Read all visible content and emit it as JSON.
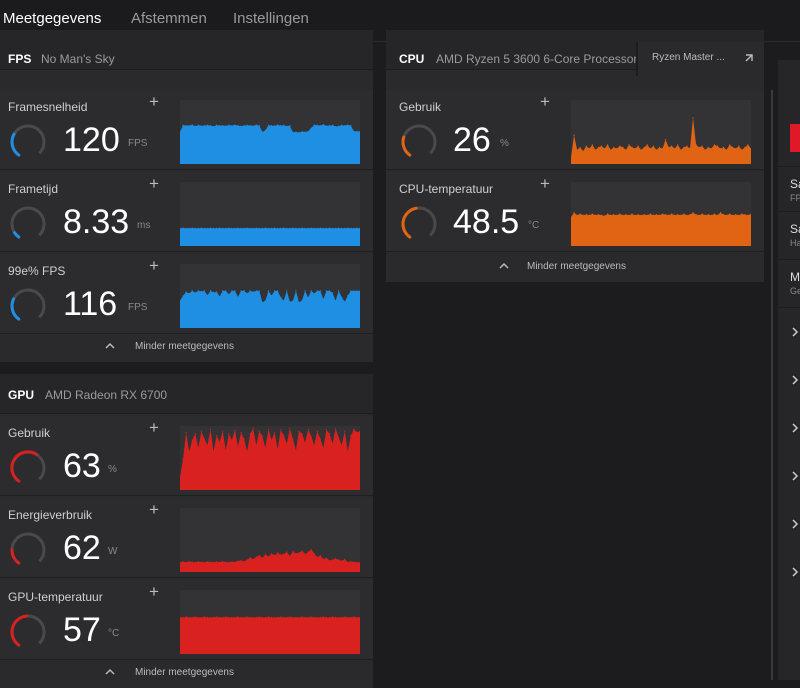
{
  "tabs": [
    {
      "label": "Meetgegevens"
    },
    {
      "label": "Afstemmen"
    },
    {
      "label": "Instellingen"
    }
  ],
  "panels": {
    "fps": {
      "category": "FPS",
      "name": "No Man's Sky",
      "metrics": [
        {
          "label": "Framesnelheid",
          "value": "120",
          "unit": "FPS",
          "gauge_fraction": 0.3
        },
        {
          "label": "Frametijd",
          "value": "8.33",
          "unit": "ms",
          "gauge_fraction": 0.08
        },
        {
          "label": "99e% FPS",
          "value": "116",
          "unit": "FPS",
          "gauge_fraction": 0.29
        }
      ],
      "less_label": "Minder meetgegevens"
    },
    "gpu": {
      "category": "GPU",
      "name": "AMD Radeon RX 6700",
      "metrics": [
        {
          "label": "Gebruik",
          "value": "63",
          "unit": "%",
          "gauge_fraction": 0.63
        },
        {
          "label": "Energieverbruik",
          "value": "62",
          "unit": "W",
          "gauge_fraction": 0.2
        },
        {
          "label": "GPU-temperatuur",
          "value": "57",
          "unit": "°C",
          "gauge_fraction": 0.5
        }
      ],
      "less_label": "Minder meetgegevens"
    },
    "cpu": {
      "category": "CPU",
      "name": "AMD Ryzen 5 3600 6-Core Processor",
      "extra_button": "Ryzen Master ...",
      "metrics": [
        {
          "label": "Gebruik",
          "value": "26",
          "unit": "%",
          "gauge_fraction": 0.26
        },
        {
          "label": "CPU-temperatuur",
          "value": "48.5",
          "unit": "°C",
          "gauge_fraction": 0.48
        }
      ],
      "less_label": "Minder meetgegevens"
    }
  },
  "side": {
    "rows": [
      {
        "title": "Sa",
        "sub": "FP"
      },
      {
        "title": "Sa",
        "sub": "Ha"
      },
      {
        "title": "M",
        "sub": "Ge"
      }
    ]
  },
  "colors": {
    "accent": "#e0192a",
    "fps": "#1f8fe4",
    "gpu": "#d9211f",
    "cpu": "#e06414",
    "gauge_track": "#4a4a4c"
  },
  "chart_data": [
    {
      "type": "area",
      "title": "Framesnelheid",
      "ylim": [
        0,
        200
      ],
      "series": [
        {
          "name": "FPS",
          "values": [
            100,
            121,
            120,
            120,
            122,
            118,
            121,
            119,
            120,
            121,
            120,
            117,
            121,
            120,
            120,
            119,
            121,
            120,
            122,
            120,
            118,
            120,
            121,
            120,
            119,
            122,
            120,
            100,
            105,
            121,
            120,
            119,
            122,
            120,
            121,
            118,
            120,
            99,
            100,
            98,
            101,
            100,
            102,
            112,
            122,
            121,
            120,
            123,
            119,
            120,
            121,
            117,
            118,
            121,
            120,
            122,
            120,
            102,
            102,
            102
          ]
        }
      ]
    },
    {
      "type": "area",
      "title": "Frametijd",
      "ylim": [
        0,
        30
      ],
      "series": [
        {
          "name": "ms",
          "values": [
            8.3,
            8.4,
            8.3,
            8.3,
            8.4,
            8.3,
            8.3,
            8.4,
            8.3,
            8.3,
            8.4,
            8.3,
            8.3,
            8.4,
            8.3,
            8.3,
            8.4,
            8.3,
            8.3,
            8.4,
            8.3,
            8.3,
            8.4,
            8.3,
            8.3,
            8.4,
            8.3,
            8.3,
            8.4,
            8.3,
            8.3,
            8.4,
            8.3,
            8.3,
            8.4,
            8.3,
            8.3,
            8.4,
            8.3,
            8.3,
            8.4,
            8.3,
            8.3,
            8.4,
            8.3,
            8.3,
            8.4,
            8.3,
            8.3,
            8.4,
            8.3,
            8.3,
            8.4,
            8.3,
            8.3,
            8.4,
            8.3,
            8.3,
            8.4,
            8.3
          ]
        }
      ]
    },
    {
      "type": "area",
      "title": "99e% FPS",
      "ylim": [
        0,
        200
      ],
      "series": [
        {
          "name": "FPS",
          "values": [
            85,
            100,
            112,
            108,
            116,
            110,
            116,
            114,
            116,
            102,
            116,
            111,
            113,
            98,
            116,
            116,
            105,
            116,
            116,
            97,
            116,
            116,
            108,
            116,
            113,
            116,
            116,
            80,
            85,
            116,
            101,
            116,
            116,
            96,
            85,
            116,
            82,
            84,
            116,
            80,
            86,
            116,
            95,
            116,
            108,
            116,
            116,
            90,
            116,
            116,
            110,
            85,
            116,
            96,
            82,
            101,
            116,
            116,
            116,
            116
          ]
        }
      ]
    },
    {
      "type": "area",
      "title": "GPU Gebruik",
      "ylim": [
        0,
        100
      ],
      "series": [
        {
          "name": "%",
          "values": [
            20,
            48,
            90,
            60,
            78,
            88,
            66,
            92,
            80,
            70,
            95,
            60,
            85,
            75,
            92,
            62,
            88,
            78,
            94,
            68,
            90,
            80,
            60,
            88,
            96,
            70,
            92,
            84,
            66,
            95,
            78,
            90,
            64,
            94,
            86,
            72,
            96,
            80,
            62,
            92,
            88,
            74,
            95,
            84,
            70,
            92,
            80,
            66,
            94,
            88,
            72,
            96,
            82,
            70,
            92,
            60,
            85,
            95,
            90,
            92
          ]
        }
      ]
    },
    {
      "type": "area",
      "title": "Energieverbruik",
      "ylim": [
        0,
        200
      ],
      "series": [
        {
          "name": "W",
          "values": [
            30,
            32,
            30,
            33,
            31,
            30,
            32,
            31,
            30,
            32,
            31,
            30,
            32,
            31,
            33,
            31,
            30,
            32,
            31,
            34,
            36,
            33,
            38,
            45,
            40,
            47,
            52,
            44,
            55,
            48,
            58,
            52,
            60,
            54,
            56,
            62,
            50,
            64,
            58,
            60,
            66,
            56,
            62,
            70,
            58,
            46,
            52,
            40,
            44,
            36,
            38,
            42,
            38,
            35,
            40,
            30,
            33,
            31,
            30,
            30
          ]
        }
      ]
    },
    {
      "type": "area",
      "title": "GPU-temperatuur",
      "ylim": [
        0,
        100
      ],
      "series": [
        {
          "name": "°C",
          "values": [
            57,
            57,
            58,
            57,
            57,
            58,
            57,
            57,
            58,
            57,
            57,
            57,
            58,
            57,
            57,
            58,
            57,
            57,
            57,
            58,
            57,
            57,
            58,
            57,
            57,
            57,
            58,
            57,
            57,
            58,
            57,
            57,
            57,
            58,
            57,
            57,
            58,
            57,
            57,
            57,
            58,
            57,
            57,
            58,
            57,
            57,
            57,
            58,
            57,
            57,
            58,
            57,
            57,
            57,
            58,
            57,
            57,
            58,
            57,
            57
          ]
        }
      ]
    },
    {
      "type": "area",
      "title": "CPU Gebruik",
      "ylim": [
        0,
        100
      ],
      "series": [
        {
          "name": "%",
          "values": [
            10,
            45,
            22,
            26,
            20,
            28,
            24,
            30,
            22,
            26,
            28,
            24,
            30,
            22,
            26,
            24,
            28,
            26,
            22,
            30,
            26,
            24,
            28,
            22,
            26,
            30,
            24,
            28,
            22,
            26,
            24,
            38,
            26,
            28,
            24,
            30,
            22,
            26,
            28,
            24,
            72,
            30,
            26,
            28,
            22,
            26,
            24,
            30,
            28,
            24,
            26,
            22,
            30,
            26,
            24,
            28,
            22,
            26,
            30,
            24
          ]
        }
      ]
    },
    {
      "type": "area",
      "title": "CPU-temperatuur",
      "ylim": [
        0,
        100
      ],
      "series": [
        {
          "name": "°C",
          "values": [
            45,
            52,
            48,
            50,
            48,
            49,
            48,
            50,
            48,
            49,
            48,
            47,
            50,
            48,
            49,
            48,
            50,
            48,
            49,
            48,
            50,
            48,
            49,
            48,
            49,
            48,
            50,
            48,
            49,
            48,
            50,
            49,
            48,
            50,
            48,
            49,
            48,
            50,
            48,
            49,
            52,
            49,
            48,
            50,
            48,
            49,
            48,
            50,
            48,
            52,
            49,
            48,
            50,
            48,
            49,
            48,
            50,
            49,
            48,
            50
          ]
        }
      ]
    }
  ]
}
